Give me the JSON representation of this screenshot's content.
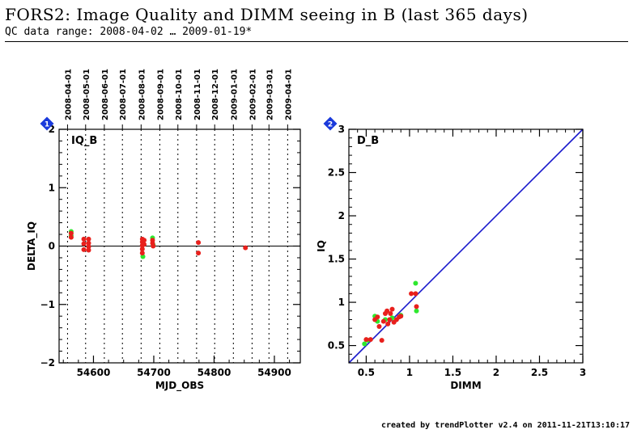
{
  "header": {
    "title": "FORS2: Image Quality and DIMM seeing in B (last 365 days)",
    "subtitle": "QC data range: 2008-04-02 … 2009-01-19*"
  },
  "footer": {
    "text": "created by trendPlotter v2.4 on 2011-11-21T13:10:17"
  },
  "colors": {
    "point_red": "#e8201c",
    "point_green": "#2ee82e",
    "fit_line": "#1a1acc",
    "badge": "#1a3adb"
  },
  "chart_data": [
    {
      "type": "scatter",
      "panel_label": "IQ_B",
      "badge": "1",
      "xlabel": "MJD_OBS",
      "ylabel": "DELTA_IQ",
      "xlim": [
        54543,
        54943
      ],
      "ylim": [
        -2,
        2
      ],
      "xticks": [
        54600,
        54700,
        54800,
        54900
      ],
      "yticks": [
        -2,
        -1,
        0,
        1,
        2
      ],
      "ytick_labels": [
        "−2",
        "−1",
        "0",
        "1",
        "2"
      ],
      "reference_line_y": 0,
      "date_ticks": [
        {
          "label": "2008-04-01",
          "mjd": 54557
        },
        {
          "label": "2008-05-01",
          "mjd": 54587
        },
        {
          "label": "2008-06-01",
          "mjd": 54618
        },
        {
          "label": "2008-07-01",
          "mjd": 54648
        },
        {
          "label": "2008-08-01",
          "mjd": 54679
        },
        {
          "label": "2008-09-01",
          "mjd": 54710
        },
        {
          "label": "2008-10-01",
          "mjd": 54740
        },
        {
          "label": "2008-11-01",
          "mjd": 54771
        },
        {
          "label": "2008-12-01",
          "mjd": 54801
        },
        {
          "label": "2009-01-01",
          "mjd": 54832
        },
        {
          "label": "2009-02-01",
          "mjd": 54863
        },
        {
          "label": "2009-03-01",
          "mjd": 54891
        },
        {
          "label": "2009-04-01",
          "mjd": 54922
        }
      ],
      "series": [
        {
          "color": "green",
          "points": [
            [
              54563,
              0.25
            ],
            [
              54563,
              0.18
            ],
            [
              54682,
              0.08
            ],
            [
              54682,
              -0.18
            ],
            [
              54698,
              0.14
            ],
            [
              54699,
              0.02
            ]
          ]
        },
        {
          "color": "red",
          "points": [
            [
              54563,
              0.22
            ],
            [
              54563,
              0.15
            ],
            [
              54584,
              0.12
            ],
            [
              54584,
              0.04
            ],
            [
              54584,
              -0.06
            ],
            [
              54592,
              0.12
            ],
            [
              54592,
              0.05
            ],
            [
              54592,
              -0.01
            ],
            [
              54592,
              -0.07
            ],
            [
              54681,
              0.12
            ],
            [
              54681,
              0.07
            ],
            [
              54681,
              0.01
            ],
            [
              54681,
              -0.05
            ],
            [
              54681,
              -0.12
            ],
            [
              54684,
              0.1
            ],
            [
              54684,
              0.03
            ],
            [
              54698,
              0.1
            ],
            [
              54698,
              0.05
            ],
            [
              54699,
              0.0
            ],
            [
              54774,
              0.06
            ],
            [
              54774,
              -0.12
            ],
            [
              54852,
              -0.03
            ]
          ]
        }
      ]
    },
    {
      "type": "scatter",
      "panel_label": "D_B",
      "badge": "2",
      "xlabel": "DIMM",
      "ylabel": "IQ",
      "xlim": [
        0.3,
        3
      ],
      "ylim": [
        0.3,
        3
      ],
      "xticks": [
        0.5,
        1,
        1.5,
        2,
        2.5,
        3
      ],
      "yticks": [
        0.5,
        1,
        1.5,
        2,
        2.5,
        3
      ],
      "reference_line": "y=x",
      "series": [
        {
          "color": "green",
          "points": [
            [
              0.48,
              0.52
            ],
            [
              0.6,
              0.84
            ],
            [
              0.63,
              0.78
            ],
            [
              0.72,
              0.8
            ],
            [
              0.8,
              0.82
            ],
            [
              0.9,
              0.85
            ],
            [
              1.07,
              1.22
            ],
            [
              1.08,
              0.9
            ],
            [
              0.52,
              0.56
            ]
          ]
        },
        {
          "color": "red",
          "points": [
            [
              0.5,
              0.57
            ],
            [
              0.55,
              0.57
            ],
            [
              0.6,
              0.8
            ],
            [
              0.63,
              0.83
            ],
            [
              0.65,
              0.72
            ],
            [
              0.68,
              0.56
            ],
            [
              0.7,
              0.78
            ],
            [
              0.72,
              0.87
            ],
            [
              0.74,
              0.9
            ],
            [
              0.75,
              0.75
            ],
            [
              0.77,
              0.8
            ],
            [
              0.78,
              0.87
            ],
            [
              0.8,
              0.92
            ],
            [
              0.82,
              0.77
            ],
            [
              0.85,
              0.8
            ],
            [
              0.88,
              0.83
            ],
            [
              0.9,
              0.84
            ],
            [
              1.02,
              1.1
            ],
            [
              1.07,
              1.1
            ],
            [
              1.08,
              0.95
            ]
          ]
        }
      ]
    }
  ]
}
